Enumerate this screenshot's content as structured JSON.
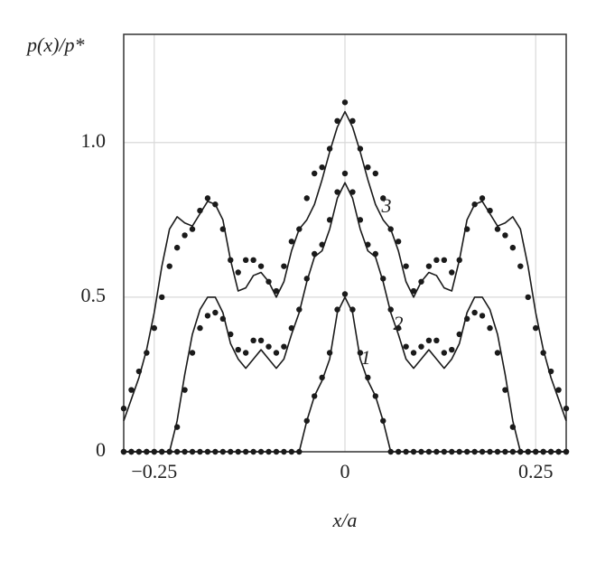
{
  "chart_data": {
    "type": "line",
    "ylabel": "p(x)/p*",
    "xlabel": "x/a",
    "x": [
      -0.29,
      -0.28,
      -0.27,
      -0.26,
      -0.25,
      -0.24,
      -0.23,
      -0.22,
      -0.21,
      -0.2,
      -0.19,
      -0.18,
      -0.17,
      -0.16,
      -0.15,
      -0.14,
      -0.13,
      -0.12,
      -0.11,
      -0.1,
      -0.09,
      -0.08,
      -0.07,
      -0.06,
      -0.05,
      -0.04,
      -0.03,
      -0.02,
      -0.01,
      0,
      0.01,
      0.02,
      0.03,
      0.04,
      0.05,
      0.06,
      0.07,
      0.08,
      0.09,
      0.1,
      0.11,
      0.12,
      0.13,
      0.14,
      0.15,
      0.16,
      0.17,
      0.18,
      0.19,
      0.2,
      0.21,
      0.22,
      0.23,
      0.24,
      0.25,
      0.26,
      0.27,
      0.28,
      0.29
    ],
    "series": [
      {
        "style": "solid",
        "color": "#1a1a1a",
        "values": [
          0.1,
          0.17,
          0.24,
          0.33,
          0.45,
          0.6,
          0.72,
          0.76,
          0.74,
          0.73,
          0.77,
          0.81,
          0.8,
          0.75,
          0.62,
          0.52,
          0.53,
          0.57,
          0.58,
          0.55,
          0.5,
          0.55,
          0.65,
          0.72,
          0.75,
          0.8,
          0.88,
          0.97,
          1.05,
          1.1,
          1.05,
          0.97,
          0.88,
          0.8,
          0.75,
          0.72,
          0.65,
          0.55,
          0.5,
          0.55,
          0.58,
          0.57,
          0.53,
          0.52,
          0.62,
          0.75,
          0.8,
          0.81,
          0.77,
          0.73,
          0.74,
          0.76,
          0.72,
          0.6,
          0.45,
          0.33,
          0.24,
          0.17,
          0.1
        ]
      },
      {
        "style": "dotted",
        "color": "#1a1a1a",
        "values": [
          0.14,
          0.2,
          0.26,
          0.32,
          0.4,
          0.5,
          0.6,
          0.66,
          0.7,
          0.72,
          0.78,
          0.82,
          0.8,
          0.72,
          0.62,
          0.58,
          0.62,
          0.62,
          0.6,
          0.55,
          0.52,
          0.6,
          0.68,
          0.72,
          0.82,
          0.9,
          0.92,
          0.98,
          1.07,
          1.13,
          1.07,
          0.98,
          0.92,
          0.9,
          0.82,
          0.72,
          0.68,
          0.6,
          0.52,
          0.55,
          0.6,
          0.62,
          0.62,
          0.58,
          0.62,
          0.72,
          0.8,
          0.82,
          0.78,
          0.72,
          0.7,
          0.66,
          0.6,
          0.5,
          0.4,
          0.32,
          0.26,
          0.2,
          0.14
        ]
      },
      {
        "style": "solid",
        "color": "#1a1a1a",
        "values": [
          0,
          0,
          0,
          0,
          0,
          0,
          0,
          0.1,
          0.25,
          0.38,
          0.46,
          0.5,
          0.5,
          0.45,
          0.35,
          0.3,
          0.27,
          0.3,
          0.33,
          0.3,
          0.27,
          0.3,
          0.38,
          0.45,
          0.55,
          0.63,
          0.65,
          0.72,
          0.82,
          0.87,
          0.82,
          0.72,
          0.65,
          0.63,
          0.55,
          0.45,
          0.38,
          0.3,
          0.27,
          0.3,
          0.33,
          0.3,
          0.27,
          0.3,
          0.35,
          0.45,
          0.5,
          0.5,
          0.46,
          0.38,
          0.25,
          0.1,
          0,
          0,
          0,
          0,
          0,
          0,
          0
        ]
      },
      {
        "style": "dotted",
        "color": "#1a1a1a",
        "values": [
          0,
          0,
          0,
          0,
          0,
          0,
          0,
          0.08,
          0.2,
          0.32,
          0.4,
          0.44,
          0.45,
          0.43,
          0.38,
          0.33,
          0.32,
          0.36,
          0.36,
          0.34,
          0.32,
          0.34,
          0.4,
          0.46,
          0.56,
          0.64,
          0.67,
          0.75,
          0.84,
          0.9,
          0.84,
          0.75,
          0.67,
          0.64,
          0.56,
          0.46,
          0.4,
          0.34,
          0.32,
          0.34,
          0.36,
          0.36,
          0.32,
          0.33,
          0.38,
          0.43,
          0.45,
          0.44,
          0.4,
          0.32,
          0.2,
          0.08,
          0,
          0,
          0,
          0,
          0,
          0,
          0
        ]
      },
      {
        "style": "solid",
        "color": "#1a1a1a",
        "values": [
          0,
          0,
          0,
          0,
          0,
          0,
          0,
          0,
          0,
          0,
          0,
          0,
          0,
          0,
          0,
          0,
          0,
          0,
          0,
          0,
          0,
          0,
          0,
          0,
          0.1,
          0.18,
          0.23,
          0.3,
          0.45,
          0.5,
          0.45,
          0.3,
          0.23,
          0.18,
          0.1,
          0,
          0,
          0,
          0,
          0,
          0,
          0,
          0,
          0,
          0,
          0,
          0,
          0,
          0,
          0,
          0,
          0,
          0,
          0,
          0,
          0,
          0,
          0,
          0
        ]
      },
      {
        "style": "dotted",
        "color": "#1a1a1a",
        "values": [
          0,
          0,
          0,
          0,
          0,
          0,
          0,
          0,
          0,
          0,
          0,
          0,
          0,
          0,
          0,
          0,
          0,
          0,
          0,
          0,
          0,
          0,
          0,
          0,
          0.1,
          0.18,
          0.24,
          0.32,
          0.46,
          0.51,
          0.46,
          0.32,
          0.24,
          0.18,
          0.1,
          0,
          0,
          0,
          0,
          0,
          0,
          0,
          0,
          0,
          0,
          0,
          0,
          0,
          0,
          0,
          0,
          0,
          0,
          0,
          0,
          0,
          0,
          0,
          0
        ]
      }
    ],
    "annotations": [
      "3",
      "2",
      "1"
    ],
    "xlim": [
      -0.29,
      0.29
    ],
    "ylim": [
      0,
      1.35
    ],
    "xticks": [
      {
        "value": -0.25,
        "label": "−0.25"
      },
      0,
      0.25
    ],
    "yticks": [
      0,
      0.5,
      {
        "value": 1,
        "label": "1.0"
      }
    ],
    "grid": true
  }
}
